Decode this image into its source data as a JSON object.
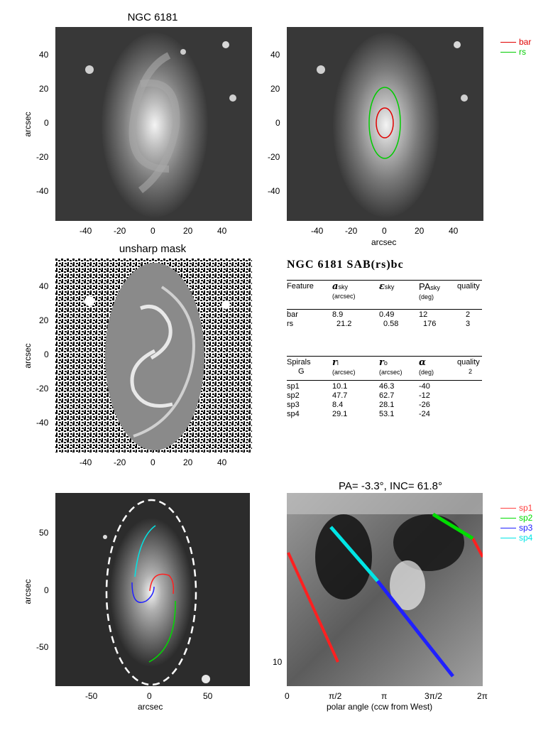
{
  "panel1": {
    "title": "NGC 6181",
    "ylabel": "arcsec",
    "yticks": [
      "40",
      "20",
      "0",
      "-20",
      "-40"
    ],
    "xticks": [
      "-40",
      "-20",
      "0",
      "20",
      "40"
    ]
  },
  "panel2": {
    "xlabel": "arcsec",
    "yticks": [
      "40",
      "20",
      "0",
      "-20",
      "-40"
    ],
    "xticks": [
      "-40",
      "-20",
      "0",
      "20",
      "40"
    ],
    "legend": [
      {
        "label": "bar",
        "color": "#e00000"
      },
      {
        "label": "rs",
        "color": "#00cc00"
      }
    ]
  },
  "panel3": {
    "title": "unsharp mask",
    "ylabel": "arcsec",
    "yticks": [
      "40",
      "20",
      "0",
      "-20",
      "-40"
    ],
    "xticks": [
      "-40",
      "-20",
      "0",
      "20",
      "40"
    ]
  },
  "info": {
    "header": "NGC 6181  SAB(rs)bc",
    "features_head": {
      "c1": "Feature",
      "c2": "a",
      "c2sub": "sky",
      "c2unit": "(arcsec)",
      "c3": "ε",
      "c3sub": "sky",
      "c4": "PA",
      "c4sub": "sky",
      "c4unit": "(deg)",
      "c5": "quality"
    },
    "features": [
      {
        "name": "bar",
        "a": "8.9",
        "e": "0.49",
        "pa": "12",
        "q": "2"
      },
      {
        "name": "rs",
        "a": "21.2",
        "e": "0.58",
        "pa": "176",
        "q": "3"
      }
    ],
    "spirals_head": {
      "c1": "Spirals",
      "c1b": "G",
      "c2": "r",
      "c2sub": "i",
      "c2unit": "(arcsec)",
      "c3": "r",
      "c3sub": "o",
      "c3unit": "(arcsec)",
      "c4": "α",
      "c4unit": "(deg)",
      "c5": "quality",
      "c5b": "2"
    },
    "spirals": [
      {
        "name": "sp1",
        "ri": "10.1",
        "ro": "46.3",
        "alpha": "-40"
      },
      {
        "name": "sp2",
        "ri": "47.7",
        "ro": "62.7",
        "alpha": "-12"
      },
      {
        "name": "sp3",
        "ri": "8.4",
        "ro": "28.1",
        "alpha": "-26"
      },
      {
        "name": "sp4",
        "ri": "29.1",
        "ro": "53.1",
        "alpha": "-24"
      }
    ]
  },
  "panel5": {
    "ylabel": "arcsec",
    "xlabel": "arcsec",
    "yticks": [
      "50",
      "0",
      "-50"
    ],
    "xticks": [
      "-50",
      "0",
      "50"
    ]
  },
  "panel6": {
    "title": "PA=  -3.3°, INC=  61.8°",
    "xlabel": "polar angle (ccw from West)",
    "xticks": [
      "0",
      "π/2",
      "π",
      "3π/2",
      "2π"
    ],
    "ytick": "10",
    "legend": [
      {
        "label": "sp1",
        "color": "#ff4040"
      },
      {
        "label": "sp2",
        "color": "#00dd00"
      },
      {
        "label": "sp3",
        "color": "#2020ff"
      },
      {
        "label": "sp4",
        "color": "#00e5e5"
      }
    ]
  }
}
